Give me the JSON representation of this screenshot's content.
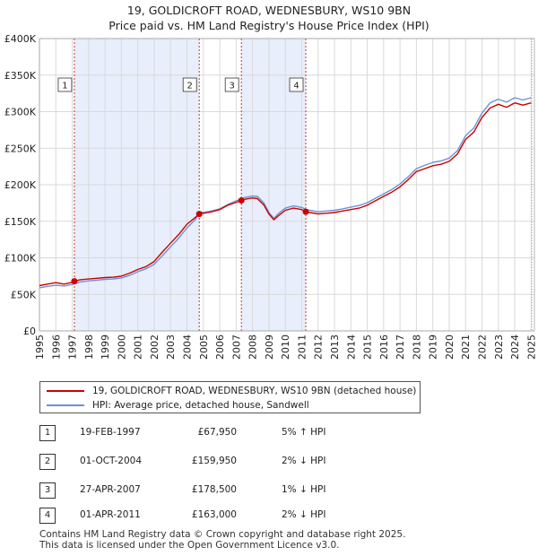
{
  "title": {
    "line1": "19, GOLDICROFT ROAD, WEDNESBURY, WS10 9BN",
    "line2": "Price paid vs. HM Land Registry's House Price Index (HPI)"
  },
  "colors": {
    "price_line": "#cc0000",
    "hpi_line": "#6a93d4",
    "shade": "#e8eefb",
    "grid": "#d9d9d9",
    "vline": "#cc3333"
  },
  "legend": {
    "price_label": "19, GOLDICROFT ROAD, WEDNESBURY, WS10 9BN (detached house)",
    "hpi_label": "HPI: Average price, detached house, Sandwell"
  },
  "sales": [
    {
      "num": "1",
      "date": "19-FEB-1997",
      "price": "£67,950",
      "hpi": "5% ↑ HPI"
    },
    {
      "num": "2",
      "date": "01-OCT-2004",
      "price": "£159,950",
      "hpi": "2% ↓ HPI"
    },
    {
      "num": "3",
      "date": "27-APR-2007",
      "price": "£178,500",
      "hpi": "1% ↓ HPI"
    },
    {
      "num": "4",
      "date": "01-APR-2011",
      "price": "£163,000",
      "hpi": "2% ↓ HPI"
    }
  ],
  "footer": {
    "line1": "Contains HM Land Registry data © Crown copyright and database right 2025.",
    "line2": "This data is licensed under the Open Government Licence v3.0."
  },
  "chart_data": {
    "type": "line",
    "title": "19, GOLDICROFT ROAD, WEDNESBURY, WS10 9BN — Price paid vs. HM Land Registry's House Price Index (HPI)",
    "xlabel": "",
    "ylabel": "",
    "xlim": [
      1995,
      2025.2
    ],
    "ylim": [
      0,
      400000
    ],
    "y_ticks": [
      0,
      50000,
      100000,
      150000,
      200000,
      250000,
      300000,
      350000,
      400000
    ],
    "y_tick_labels": [
      "£0",
      "£50K",
      "£100K",
      "£150K",
      "£200K",
      "£250K",
      "£300K",
      "£350K",
      "£400K"
    ],
    "x_ticks": [
      1995,
      1996,
      1997,
      1998,
      1999,
      2000,
      2001,
      2002,
      2003,
      2004,
      2005,
      2006,
      2007,
      2008,
      2009,
      2010,
      2011,
      2012,
      2013,
      2014,
      2015,
      2016,
      2017,
      2018,
      2019,
      2020,
      2021,
      2022,
      2023,
      2024,
      2025
    ],
    "x_tick_labels": [
      "1995",
      "1996",
      "1997",
      "1998",
      "1999",
      "2000",
      "2001",
      "2002",
      "2003",
      "2004",
      "2005",
      "2006",
      "2007",
      "2008",
      "2009",
      "2010",
      "2011",
      "2012",
      "2013",
      "2014",
      "2015",
      "2016",
      "2017",
      "2018",
      "2019",
      "2020",
      "2021",
      "2022",
      "2023",
      "2024",
      "2025"
    ],
    "grid": true,
    "shaded_periods": [
      [
        1997.13,
        2004.75
      ],
      [
        2007.32,
        2011.25
      ]
    ],
    "sale_markers": [
      {
        "label": "1",
        "x": 1997.13,
        "y": 67950
      },
      {
        "label": "2",
        "x": 2004.75,
        "y": 159950
      },
      {
        "label": "3",
        "x": 2007.32,
        "y": 178500
      },
      {
        "label": "4",
        "x": 2011.25,
        "y": 163000
      }
    ],
    "series": [
      {
        "name": "19, GOLDICROFT ROAD, WEDNESBURY, WS10 9BN (detached house)",
        "x": [
          1995.0,
          1995.5,
          1996.0,
          1996.5,
          1997.0,
          1997.13,
          1997.5,
          1998.0,
          1998.5,
          1999.0,
          1999.5,
          2000.0,
          2000.5,
          2001.0,
          2001.5,
          2002.0,
          2002.5,
          2003.0,
          2003.5,
          2004.0,
          2004.5,
          2004.75,
          2005.0,
          2005.5,
          2006.0,
          2006.5,
          2007.0,
          2007.32,
          2007.5,
          2008.0,
          2008.3,
          2008.7,
          2009.0,
          2009.3,
          2009.6,
          2010.0,
          2010.5,
          2011.0,
          2011.25,
          2011.5,
          2012.0,
          2012.5,
          2013.0,
          2013.5,
          2014.0,
          2014.5,
          2015.0,
          2015.5,
          2016.0,
          2016.5,
          2017.0,
          2017.5,
          2018.0,
          2018.5,
          2019.0,
          2019.5,
          2020.0,
          2020.5,
          2021.0,
          2021.5,
          2022.0,
          2022.5,
          2023.0,
          2023.5,
          2024.0,
          2024.5,
          2025.0
        ],
        "values": [
          62000,
          64000,
          66000,
          64000,
          66500,
          67950,
          70000,
          71000,
          72000,
          73000,
          73500,
          75000,
          79000,
          84000,
          88000,
          95000,
          108000,
          120000,
          132000,
          146000,
          155000,
          159950,
          161000,
          163000,
          166000,
          172000,
          176000,
          178500,
          180000,
          182000,
          181000,
          172000,
          160000,
          152000,
          158000,
          165000,
          168000,
          166000,
          163000,
          162000,
          160000,
          161000,
          162000,
          164000,
          166000,
          168000,
          172000,
          178000,
          184000,
          190000,
          197000,
          207000,
          218000,
          222000,
          226000,
          228000,
          232000,
          242000,
          262000,
          272000,
          292000,
          305000,
          310000,
          306000,
          312000,
          309000,
          312000
        ]
      },
      {
        "name": "HPI: Average price, detached house, Sandwell",
        "x": [
          1995.0,
          1995.5,
          1996.0,
          1996.5,
          1997.0,
          1997.13,
          1997.5,
          1998.0,
          1998.5,
          1999.0,
          1999.5,
          2000.0,
          2000.5,
          2001.0,
          2001.5,
          2002.0,
          2002.5,
          2003.0,
          2003.5,
          2004.0,
          2004.5,
          2004.75,
          2005.0,
          2005.5,
          2006.0,
          2006.5,
          2007.0,
          2007.32,
          2007.5,
          2008.0,
          2008.3,
          2008.7,
          2009.0,
          2009.3,
          2009.6,
          2010.0,
          2010.5,
          2011.0,
          2011.25,
          2011.5,
          2012.0,
          2012.5,
          2013.0,
          2013.5,
          2014.0,
          2014.5,
          2015.0,
          2015.5,
          2016.0,
          2016.5,
          2017.0,
          2017.5,
          2018.0,
          2018.5,
          2019.0,
          2019.5,
          2020.0,
          2020.5,
          2021.0,
          2021.5,
          2022.0,
          2022.5,
          2023.0,
          2023.5,
          2024.0,
          2024.5,
          2025.0
        ],
        "values": [
          59000,
          61000,
          62500,
          61500,
          63500,
          64700,
          67000,
          68500,
          69500,
          70500,
          71000,
          72500,
          76000,
          81000,
          85000,
          91000,
          103000,
          115000,
          127000,
          141000,
          152000,
          163200,
          162000,
          164000,
          167000,
          173000,
          178000,
          180300,
          182500,
          184500,
          184000,
          175000,
          162000,
          154000,
          161000,
          168000,
          171000,
          169000,
          166300,
          165000,
          163000,
          164000,
          165000,
          167000,
          169500,
          171500,
          175500,
          181500,
          187500,
          193500,
          201000,
          211000,
          222000,
          226500,
          230500,
          232500,
          236500,
          246500,
          267000,
          277500,
          298000,
          312000,
          317000,
          313000,
          319000,
          316000,
          319000
        ]
      }
    ]
  }
}
